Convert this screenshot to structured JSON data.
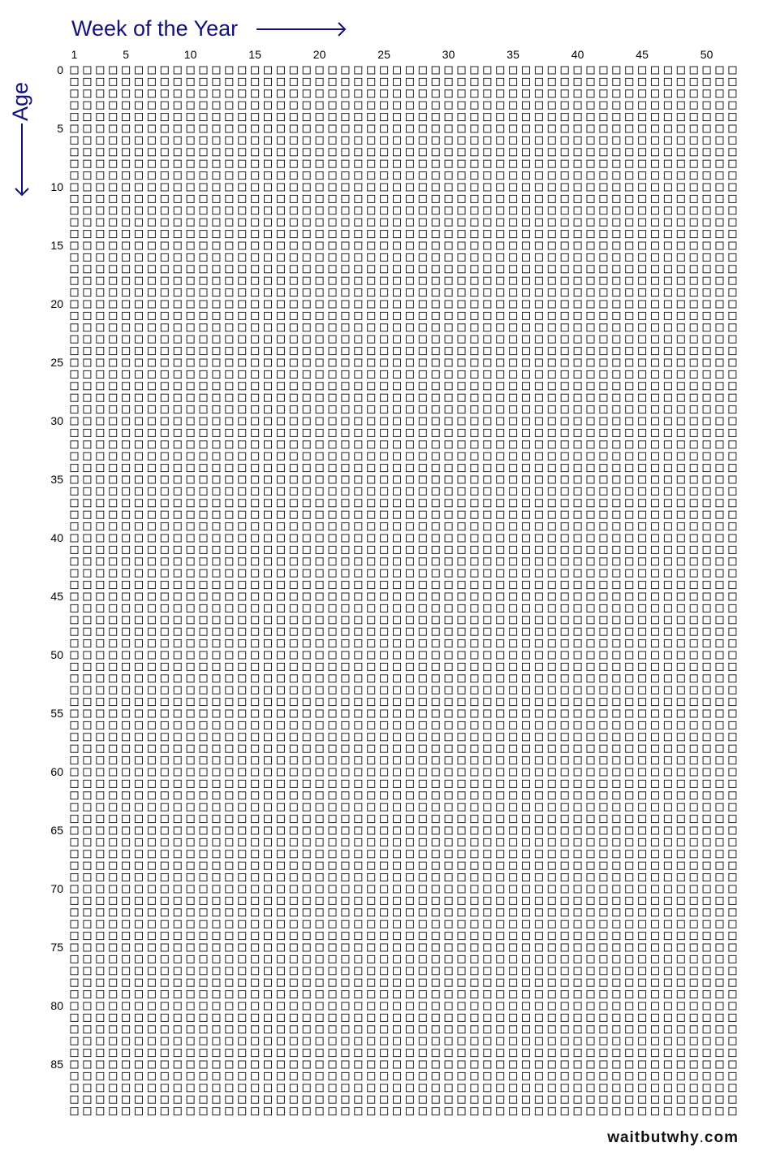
{
  "header": {
    "title": "Week of the Year"
  },
  "side": {
    "title": "Age"
  },
  "week_labels": [
    "1",
    "5",
    "10",
    "15",
    "20",
    "25",
    "30",
    "35",
    "40",
    "45",
    "50"
  ],
  "week_label_weeks": [
    1,
    5,
    10,
    15,
    20,
    25,
    30,
    35,
    40,
    45,
    50
  ],
  "age_labels": [
    "0",
    "5",
    "10",
    "15",
    "20",
    "25",
    "30",
    "35",
    "40",
    "45",
    "50",
    "55",
    "60",
    "65",
    "70",
    "75",
    "80",
    "85"
  ],
  "age_label_years": [
    0,
    5,
    10,
    15,
    20,
    25,
    30,
    35,
    40,
    45,
    50,
    55,
    60,
    65,
    70,
    75,
    80,
    85
  ],
  "grid": {
    "weeks_per_row": 52,
    "rows": 90
  },
  "footer": {
    "site": "waitbutwhy",
    "dot": ".",
    "tld": "com"
  },
  "colors": {
    "accent": "#12127a",
    "box_stroke": "#222222",
    "text": "#000000"
  }
}
